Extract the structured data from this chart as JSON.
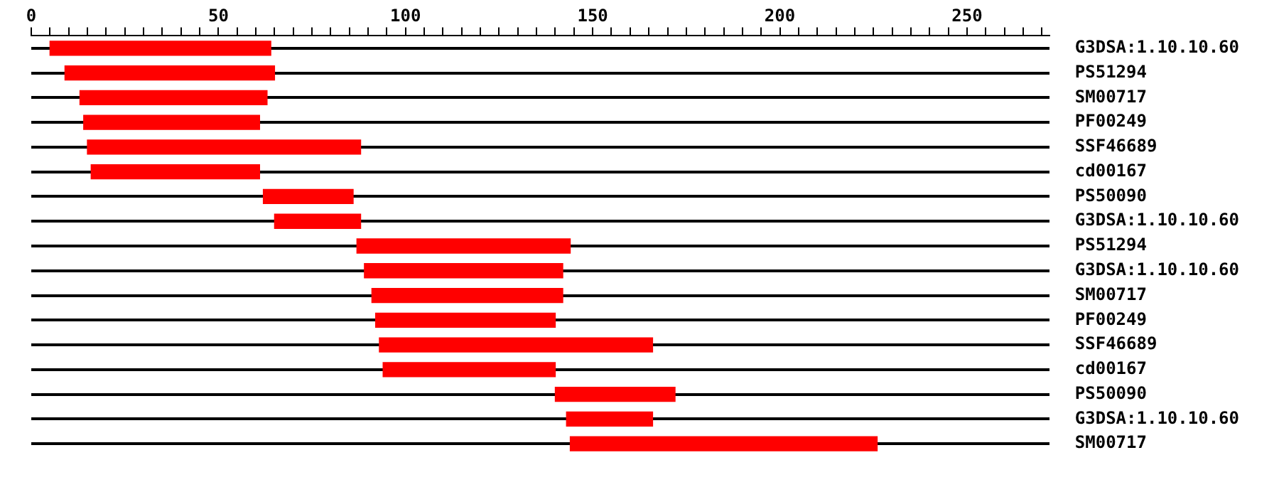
{
  "chart_data": {
    "type": "bar",
    "orientation": "horizontal",
    "grid": "y",
    "legend": false,
    "color": "#ff0000",
    "categories": [
      "G3DSA:1.10.10.60",
      "PS51294",
      "SM00717",
      "PF00249",
      "SSF46689",
      "cd00167",
      "PS50090",
      "G3DSA:1.10.10.60",
      "PS51294",
      "G3DSA:1.10.10.60",
      "SM00717",
      "PF00249",
      "SSF46689",
      "cd00167",
      "PS50090",
      "G3DSA:1.10.10.60",
      "SM00717"
    ],
    "base": [
      5,
      9,
      13,
      14,
      15,
      16,
      62,
      65,
      87,
      89,
      91,
      92,
      93,
      94,
      140,
      143,
      144
    ],
    "values": [
      59,
      56,
      50,
      47,
      73,
      45,
      24,
      23,
      57,
      53,
      51,
      48,
      73,
      46,
      32,
      23,
      82
    ],
    "xlim": [
      0,
      272
    ],
    "xticks": [
      0,
      {
        "value": 5,
        "label": null
      },
      {
        "value": 10,
        "label": null
      },
      {
        "value": 15,
        "label": null
      },
      {
        "value": 20,
        "label": null
      },
      {
        "value": 25,
        "label": null
      },
      {
        "value": 30,
        "label": null
      },
      {
        "value": 35,
        "label": null
      },
      {
        "value": 40,
        "label": null
      },
      {
        "value": 45,
        "label": null
      },
      50,
      {
        "value": 55,
        "label": null
      },
      {
        "value": 60,
        "label": null
      },
      {
        "value": 65,
        "label": null
      },
      {
        "value": 70,
        "label": null
      },
      {
        "value": 75,
        "label": null
      },
      {
        "value": 80,
        "label": null
      },
      {
        "value": 85,
        "label": null
      },
      {
        "value": 90,
        "label": null
      },
      {
        "value": 95,
        "label": null
      },
      100,
      {
        "value": 105,
        "label": null
      },
      {
        "value": 110,
        "label": null
      },
      {
        "value": 115,
        "label": null
      },
      {
        "value": 120,
        "label": null
      },
      {
        "value": 125,
        "label": null
      },
      {
        "value": 130,
        "label": null
      },
      {
        "value": 135,
        "label": null
      },
      {
        "value": 140,
        "label": null
      },
      {
        "value": 145,
        "label": null
      },
      150,
      {
        "value": 155,
        "label": null
      },
      {
        "value": 160,
        "label": null
      },
      {
        "value": 165,
        "label": null
      },
      {
        "value": 170,
        "label": null
      },
      {
        "value": 175,
        "label": null
      },
      {
        "value": 180,
        "label": null
      },
      {
        "value": 185,
        "label": null
      },
      {
        "value": 190,
        "label": null
      },
      {
        "value": 195,
        "label": null
      },
      200,
      {
        "value": 205,
        "label": null
      },
      {
        "value": 210,
        "label": null
      },
      {
        "value": 215,
        "label": null
      },
      {
        "value": 220,
        "label": null
      },
      {
        "value": 225,
        "label": null
      },
      {
        "value": 230,
        "label": null
      },
      {
        "value": 235,
        "label": null
      },
      {
        "value": 240,
        "label": null
      },
      {
        "value": 245,
        "label": null
      },
      250,
      {
        "value": 255,
        "label": null
      },
      {
        "value": 260,
        "label": null
      },
      {
        "value": 265,
        "label": null
      },
      {
        "value": 270,
        "label": null
      }
    ]
  }
}
